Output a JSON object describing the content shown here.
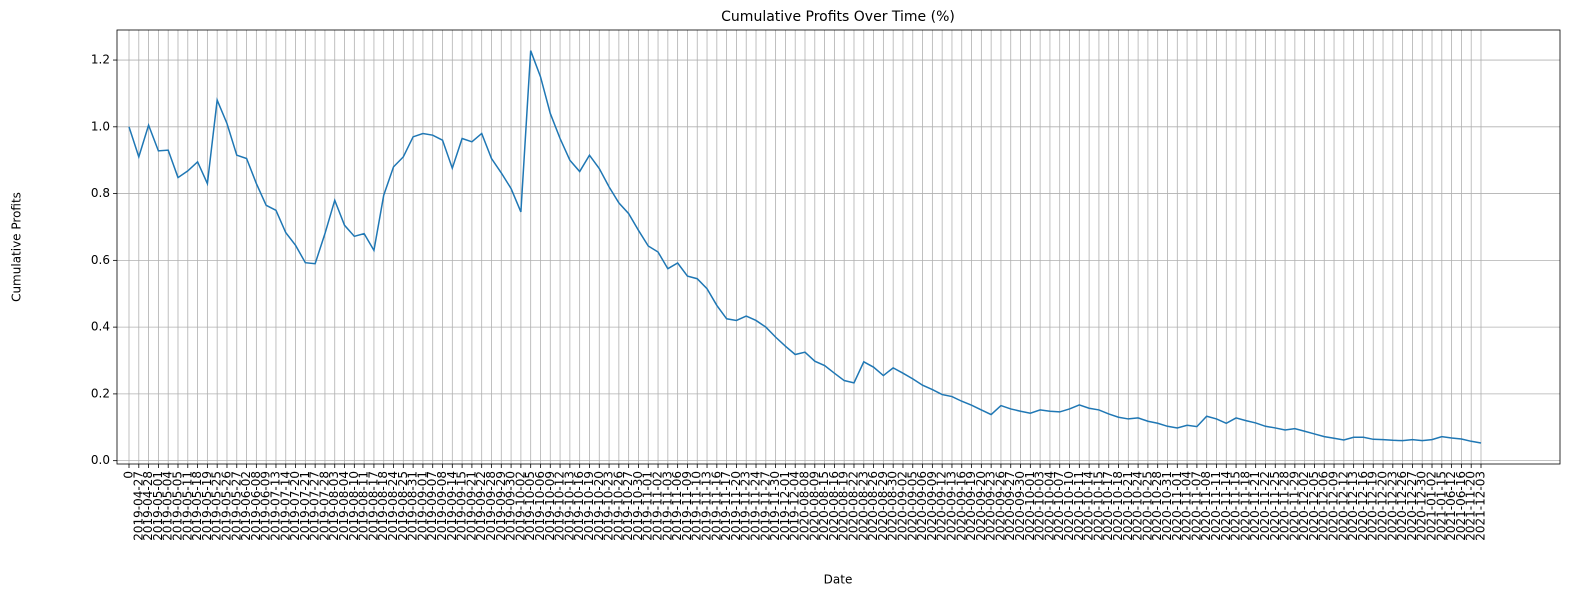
{
  "chart_data": {
    "type": "line",
    "title": "Cumulative Profits Over Time (%)",
    "x_label": "Date",
    "y_label": "Cumulative Profits",
    "categories": [
      "0",
      "2019-04-27",
      "2019-04-28",
      "2019-05-01",
      "2019-05-04",
      "2019-05-05",
      "2019-05-11",
      "2019-05-18",
      "2019-05-19",
      "2019-05-25",
      "2019-05-26",
      "2019-05-27",
      "2019-06-02",
      "2019-06-08",
      "2019-06-09",
      "2019-07-13",
      "2019-07-14",
      "2019-07-20",
      "2019-07-21",
      "2019-07-27",
      "2019-07-28",
      "2019-08-03",
      "2019-08-04",
      "2019-08-10",
      "2019-08-11",
      "2019-08-17",
      "2019-08-18",
      "2019-08-24",
      "2019-08-25",
      "2019-08-31",
      "2019-09-01",
      "2019-09-07",
      "2019-09-08",
      "2019-09-14",
      "2019-09-15",
      "2019-09-21",
      "2019-09-22",
      "2019-09-28",
      "2019-09-29",
      "2019-09-30",
      "2019-10-02",
      "2019-10-05",
      "2019-10-06",
      "2019-10-09",
      "2019-10-12",
      "2019-10-13",
      "2019-10-16",
      "2019-10-19",
      "2019-10-20",
      "2019-10-23",
      "2019-10-26",
      "2019-10-27",
      "2019-10-30",
      "2019-11-01",
      "2019-11-02",
      "2019-11-03",
      "2019-11-06",
      "2019-11-09",
      "2019-11-10",
      "2019-11-13",
      "2019-11-16",
      "2019-11-17",
      "2019-11-20",
      "2019-11-23",
      "2019-11-24",
      "2019-11-27",
      "2019-11-30",
      "2019-12-01",
      "2019-12-04",
      "2020-08-08",
      "2020-08-09",
      "2020-08-15",
      "2020-08-16",
      "2020-08-19",
      "2020-08-22",
      "2020-08-23",
      "2020-08-26",
      "2020-08-29",
      "2020-08-30",
      "2020-09-02",
      "2020-09-05",
      "2020-09-06",
      "2020-09-09",
      "2020-09-12",
      "2020-09-13",
      "2020-09-16",
      "2020-09-19",
      "2020-09-20",
      "2020-09-23",
      "2020-09-26",
      "2020-09-27",
      "2020-09-30",
      "2020-10-01",
      "2020-10-03",
      "2020-10-04",
      "2020-10-07",
      "2020-10-10",
      "2020-10-11",
      "2020-10-14",
      "2020-10-15",
      "2020-10-17",
      "2020-10-18",
      "2020-10-21",
      "2020-10-24",
      "2020-10-25",
      "2020-10-28",
      "2020-10-31",
      "2020-11-01",
      "2020-11-04",
      "2020-11-07",
      "2020-11-08",
      "2020-11-11",
      "2020-11-14",
      "2020-11-15",
      "2020-11-18",
      "2020-11-21",
      "2020-11-22",
      "2020-11-25",
      "2020-11-28",
      "2020-11-29",
      "2020-12-02",
      "2020-12-05",
      "2020-12-06",
      "2020-12-09",
      "2020-12-12",
      "2020-12-13",
      "2020-12-16",
      "2020-12-19",
      "2020-12-20",
      "2020-12-23",
      "2020-12-26",
      "2020-12-27",
      "2020-12-30",
      "2021-01-02",
      "2021-01-15",
      "2021-06-12",
      "2021-06-16",
      "2021-11-20",
      "2021-12-03"
    ],
    "series": [
      {
        "name": "Cumulative Profits",
        "color": "#1f77b4",
        "values": [
          1.0,
          0.91,
          1.005,
          0.928,
          0.93,
          0.848,
          0.868,
          0.895,
          0.83,
          1.08,
          1.01,
          0.915,
          0.905,
          0.83,
          0.765,
          0.75,
          0.683,
          0.645,
          0.593,
          0.59,
          0.68,
          0.78,
          0.705,
          0.672,
          0.68,
          0.63,
          0.795,
          0.88,
          0.91,
          0.97,
          0.98,
          0.975,
          0.96,
          0.876,
          0.965,
          0.955,
          0.98,
          0.905,
          0.862,
          0.815,
          0.745,
          1.228,
          1.15,
          1.04,
          0.965,
          0.9,
          0.866,
          0.915,
          0.875,
          0.82,
          0.772,
          0.74,
          0.69,
          0.643,
          0.625,
          0.575,
          0.592,
          0.553,
          0.545,
          0.515,
          0.465,
          0.425,
          0.42,
          0.433,
          0.42,
          0.4,
          0.37,
          0.343,
          0.318,
          0.325,
          0.298,
          0.285,
          0.262,
          0.24,
          0.233,
          0.296,
          0.28,
          0.255,
          0.278,
          0.262,
          0.245,
          0.226,
          0.213,
          0.198,
          0.192,
          0.178,
          0.166,
          0.152,
          0.138,
          0.165,
          0.155,
          0.148,
          0.142,
          0.152,
          0.148,
          0.146,
          0.155,
          0.167,
          0.157,
          0.152,
          0.14,
          0.13,
          0.125,
          0.128,
          0.118,
          0.112,
          0.103,
          0.098,
          0.106,
          0.102,
          0.133,
          0.125,
          0.112,
          0.128,
          0.12,
          0.113,
          0.103,
          0.098,
          0.092,
          0.096,
          0.088,
          0.08,
          0.072,
          0.067,
          0.062,
          0.07,
          0.07,
          0.064,
          0.063,
          0.061,
          0.06,
          0.063,
          0.06,
          0.063,
          0.072,
          0.068,
          0.065,
          0.058,
          0.053
        ]
      }
    ],
    "ylim": [
      -0.01,
      1.29
    ],
    "yticks": [
      {
        "value": 0,
        "label": "0.0"
      },
      0.2,
      0.4,
      0.6,
      0.8,
      {
        "value": 1,
        "label": "1.0"
      },
      1.2
    ],
    "grid": true
  }
}
